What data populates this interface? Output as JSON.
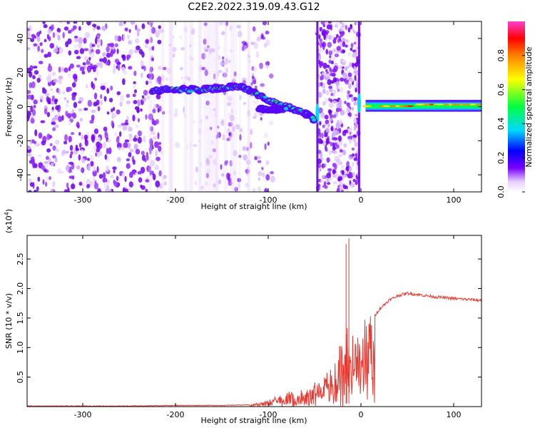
{
  "title": "C2E2.2022.319.09.43.G12",
  "colors": {
    "signal_strong": "#ff0000",
    "signal_mid": "#00ff40",
    "signal_low": "#00e0ff",
    "noise": "#7a00ff",
    "snr_line": "#e8382f"
  },
  "chart_data": [
    {
      "type": "heatmap",
      "xlabel": "Height of straight line (km)",
      "ylabel": "Frequency (Hz)",
      "xlim": [
        -360,
        130
      ],
      "ylim": [
        -50,
        50
      ],
      "xticks": [
        -300,
        -200,
        -100,
        0,
        100
      ],
      "yticks": [
        -40,
        -20,
        0,
        20,
        40
      ],
      "colorbar": {
        "label": "Normalized spectral amplitude",
        "range": [
          0.0,
          1.0
        ],
        "ticks": [
          0.0,
          0.2,
          0.4,
          0.6,
          0.8
        ],
        "tick_labels": [
          "0.0",
          "0.2",
          "0.4",
          "0.6",
          "0.8"
        ]
      },
      "features": {
        "doppler_trace": {
          "x": [
            -225,
            -210,
            -190,
            -170,
            -150,
            -130,
            -115,
            -100,
            -80,
            -60,
            -50
          ],
          "freq": [
            9,
            10,
            10,
            10,
            11,
            12,
            8,
            4,
            0,
            -4,
            -8
          ]
        },
        "lower_branch": {
          "x": [
            -110,
            -100,
            -90,
            -80
          ],
          "freq": [
            -1,
            -2,
            -2,
            -1
          ]
        },
        "after_occultation": {
          "x": [
            5,
            20,
            40,
            60,
            80,
            100,
            130
          ],
          "freq": [
            0,
            0,
            0,
            1,
            1,
            1,
            1
          ]
        },
        "noise_gap_x": [
          -210,
          -170
        ],
        "vertical_edges_x": [
          -47,
          -2
        ]
      }
    },
    {
      "type": "line",
      "xlabel": "Height of straight line (km)",
      "ylabel": "SNR (10 * v/v)",
      "scale_label": "(x10^4)",
      "xlim": [
        -360,
        130
      ],
      "ylim": [
        0,
        2.9
      ],
      "xticks": [
        -300,
        -200,
        -100,
        0,
        100
      ],
      "yticks": [
        0.5,
        1.0,
        1.5,
        2.0,
        2.5
      ],
      "ytick_labels": [
        "0.5",
        "1.0",
        "1.5",
        "2.0",
        "2.5"
      ],
      "series": [
        {
          "x": [
            -360,
            -250,
            -200,
            -150,
            -120,
            -100,
            -80,
            -60,
            -40,
            -30,
            -20,
            -15,
            -10,
            0,
            10,
            20,
            30,
            40,
            50,
            60,
            80,
            100,
            130
          ],
          "y": [
            0.01,
            0.01,
            0.02,
            0.02,
            0.03,
            0.1,
            0.22,
            0.25,
            0.45,
            0.6,
            1.0,
            1.35,
            1.0,
            1.2,
            1.45,
            1.65,
            1.8,
            1.88,
            1.92,
            1.9,
            1.86,
            1.83,
            1.8
          ]
        }
      ],
      "spikes": [
        {
          "x": -16,
          "y": 2.75
        },
        {
          "x": -13,
          "y": 2.85
        }
      ]
    }
  ]
}
